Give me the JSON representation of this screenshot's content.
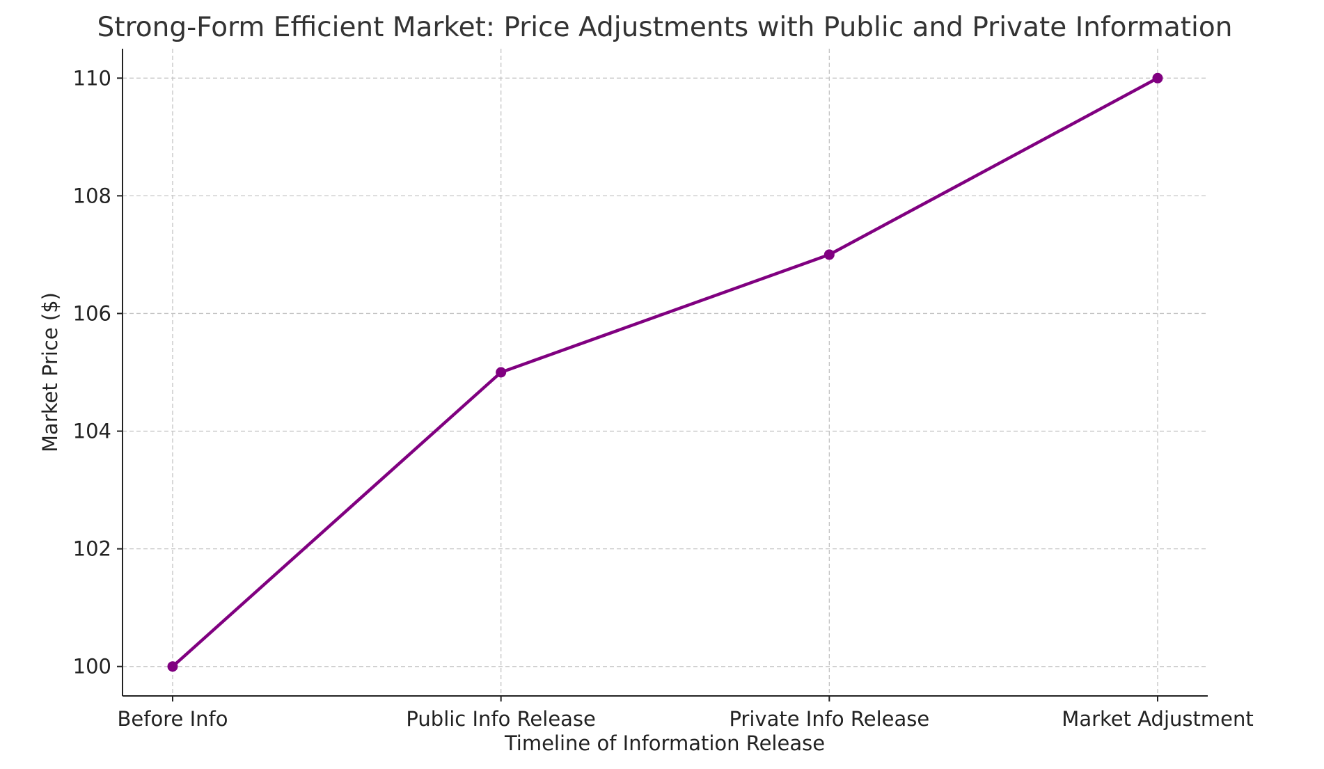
{
  "chart_data": {
    "type": "line",
    "title": "Strong-Form Efficient Market: Price Adjustments with Public and Private Information",
    "xlabel": "Timeline of Information Release",
    "ylabel": "Market Price ($)",
    "categories": [
      "Before Info",
      "Public Info Release",
      "Private Info Release",
      "Market Adjustment"
    ],
    "series": [
      {
        "values": [
          100,
          105,
          107,
          110
        ],
        "color": "#800080",
        "marker": "circle"
      }
    ],
    "ylim": [
      99.5,
      110.5
    ],
    "yticks": [
      100,
      102,
      104,
      106,
      108,
      110
    ],
    "grid": true,
    "grid_style": "dashed"
  }
}
